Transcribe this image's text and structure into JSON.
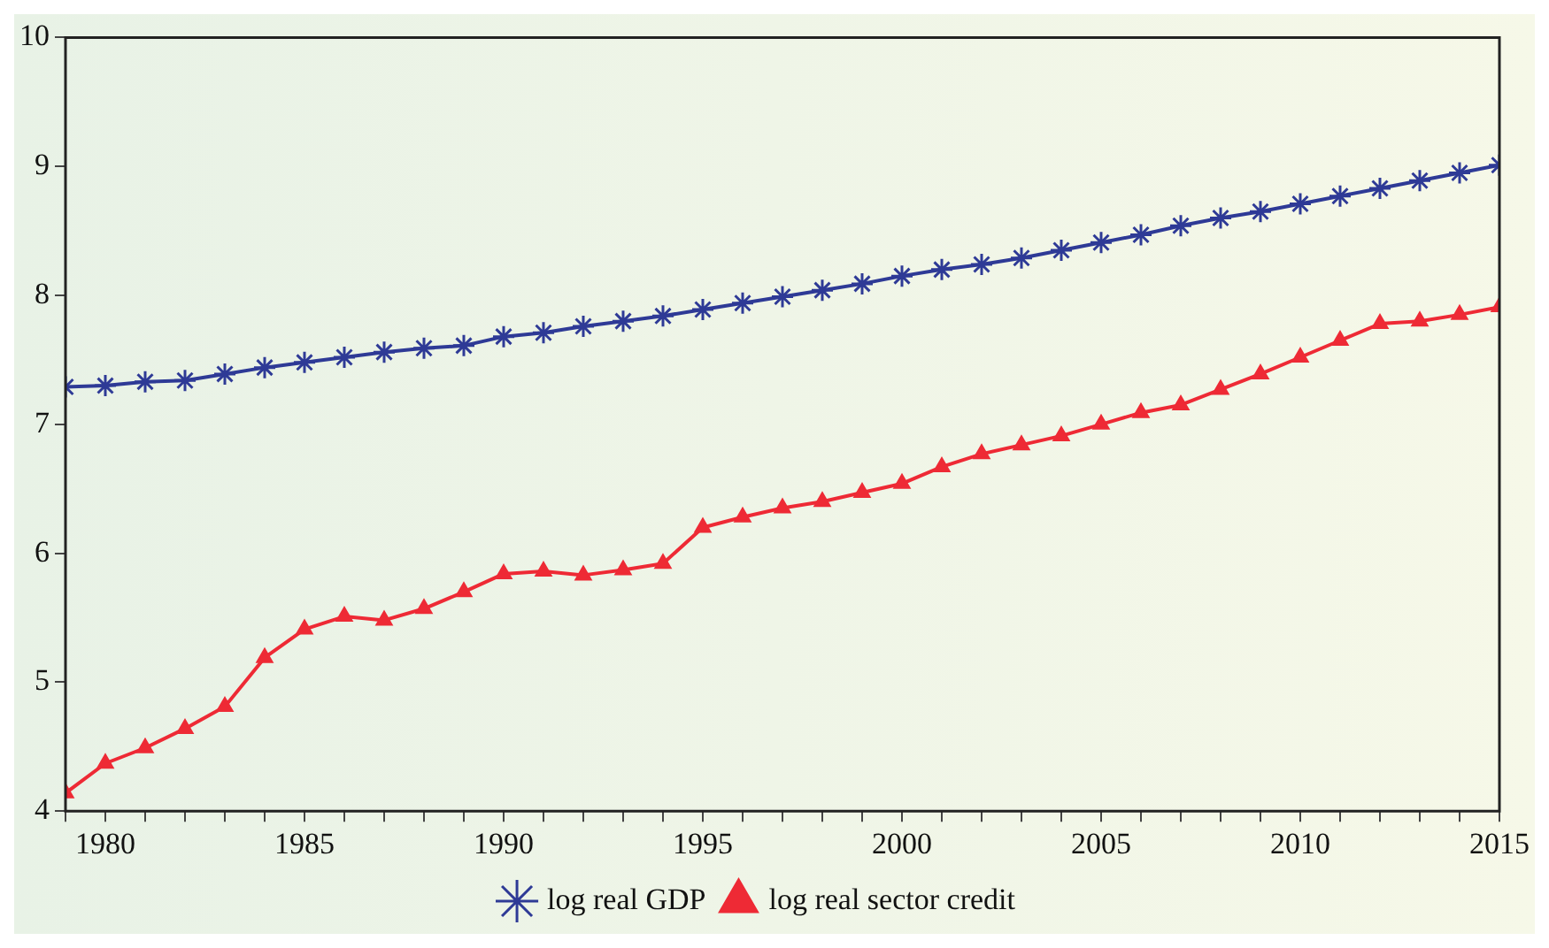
{
  "chart_data": {
    "type": "line",
    "x": [
      1979,
      1980,
      1981,
      1982,
      1983,
      1984,
      1985,
      1986,
      1987,
      1988,
      1989,
      1990,
      1991,
      1992,
      1993,
      1994,
      1995,
      1996,
      1997,
      1998,
      1999,
      2000,
      2001,
      2002,
      2003,
      2004,
      2005,
      2006,
      2007,
      2008,
      2009,
      2010,
      2011,
      2012,
      2013,
      2014,
      2015
    ],
    "series": [
      {
        "name": "log real GDP",
        "color": "#2e3a96",
        "marker": "cross",
        "values": [
          7.29,
          7.3,
          7.33,
          7.34,
          7.39,
          7.44,
          7.48,
          7.52,
          7.56,
          7.59,
          7.61,
          7.68,
          7.71,
          7.76,
          7.8,
          7.84,
          7.89,
          7.94,
          7.99,
          8.04,
          8.09,
          8.15,
          8.2,
          8.24,
          8.29,
          8.35,
          8.41,
          8.47,
          8.54,
          8.6,
          8.65,
          8.71,
          8.77,
          8.83,
          8.89,
          8.95,
          9.01
        ]
      },
      {
        "name": "log real sector credit",
        "color": "#ee2a35",
        "marker": "triangle",
        "values": [
          4.14,
          4.37,
          4.49,
          4.64,
          4.81,
          5.19,
          5.41,
          5.51,
          5.48,
          5.57,
          5.7,
          5.84,
          5.86,
          5.83,
          5.87,
          5.92,
          6.2,
          6.28,
          6.35,
          6.4,
          6.47,
          6.54,
          6.67,
          6.77,
          6.84,
          6.91,
          7.0,
          7.09,
          7.15,
          7.27,
          7.39,
          7.52,
          7.65,
          7.78,
          7.8,
          7.85,
          7.91
        ]
      }
    ],
    "xlim": [
      1979,
      2015
    ],
    "xticks": [
      {
        "value": 1979,
        "label": null
      },
      1980,
      {
        "value": 1981,
        "label": null
      },
      {
        "value": 1982,
        "label": null
      },
      {
        "value": 1983,
        "label": null
      },
      {
        "value": 1984,
        "label": null
      },
      1985,
      {
        "value": 1986,
        "label": null
      },
      {
        "value": 1987,
        "label": null
      },
      {
        "value": 1988,
        "label": null
      },
      {
        "value": 1989,
        "label": null
      },
      1990,
      {
        "value": 1991,
        "label": null
      },
      {
        "value": 1992,
        "label": null
      },
      {
        "value": 1993,
        "label": null
      },
      {
        "value": 1994,
        "label": null
      },
      1995,
      {
        "value": 1996,
        "label": null
      },
      {
        "value": 1997,
        "label": null
      },
      {
        "value": 1998,
        "label": null
      },
      {
        "value": 1999,
        "label": null
      },
      2000,
      {
        "value": 2001,
        "label": null
      },
      {
        "value": 2002,
        "label": null
      },
      {
        "value": 2003,
        "label": null
      },
      {
        "value": 2004,
        "label": null
      },
      2005,
      {
        "value": 2006,
        "label": null
      },
      {
        "value": 2007,
        "label": null
      },
      {
        "value": 2008,
        "label": null
      },
      {
        "value": 2009,
        "label": null
      },
      2010,
      {
        "value": 2011,
        "label": null
      },
      {
        "value": 2012,
        "label": null
      },
      {
        "value": 2013,
        "label": null
      },
      {
        "value": 2014,
        "label": null
      },
      2015
    ],
    "ylim": [
      4,
      10
    ],
    "yticks": [
      4,
      5,
      6,
      7,
      8,
      9,
      10
    ],
    "grid": false,
    "legend": "bottom",
    "line_style": "solid"
  }
}
